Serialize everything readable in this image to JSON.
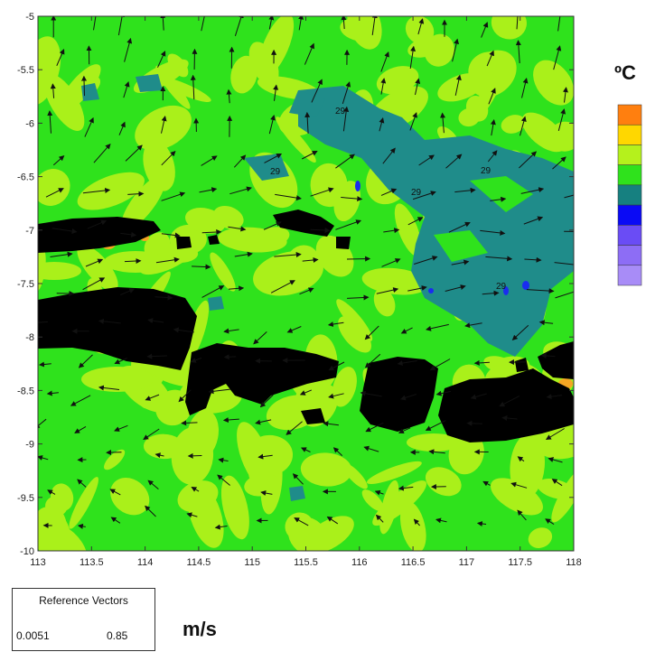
{
  "map": {
    "x_ticks": [
      "113",
      "113.5",
      "114",
      "114.5",
      "115",
      "115.5",
      "116",
      "116.5",
      "117",
      "117.5",
      "118"
    ],
    "y_ticks": [
      "-5",
      "-5.5",
      "-6",
      "-6.5",
      "-7",
      "-7.5",
      "-8",
      "-8.5",
      "-9",
      "-9.5",
      "-10"
    ],
    "xlim": [
      113,
      118
    ],
    "ylim": [
      -10,
      -5
    ],
    "contour_labels": [
      "29",
      "29",
      "29",
      "29",
      "29"
    ],
    "colors": {
      "land": "#000000",
      "ocean_base": "#2fe21c",
      "light_green": "#aaf01a",
      "teal": "#1f8c8a",
      "orange": "#f5a623",
      "blue": "#1a2cf0",
      "arrow": "#111111"
    }
  },
  "colorbar": {
    "unit": "ºC",
    "colors": [
      "#ff7f0f",
      "#ffd700",
      "#b5f11c",
      "#2fe21c",
      "#168080",
      "#0a0af5",
      "#6a4cf5",
      "#8d6df5",
      "#a88cf7"
    ]
  },
  "reference_vectors": {
    "title": "Reference Vectors",
    "min": "0.0051",
    "max": "0.85"
  },
  "vector_unit": "m/s"
}
